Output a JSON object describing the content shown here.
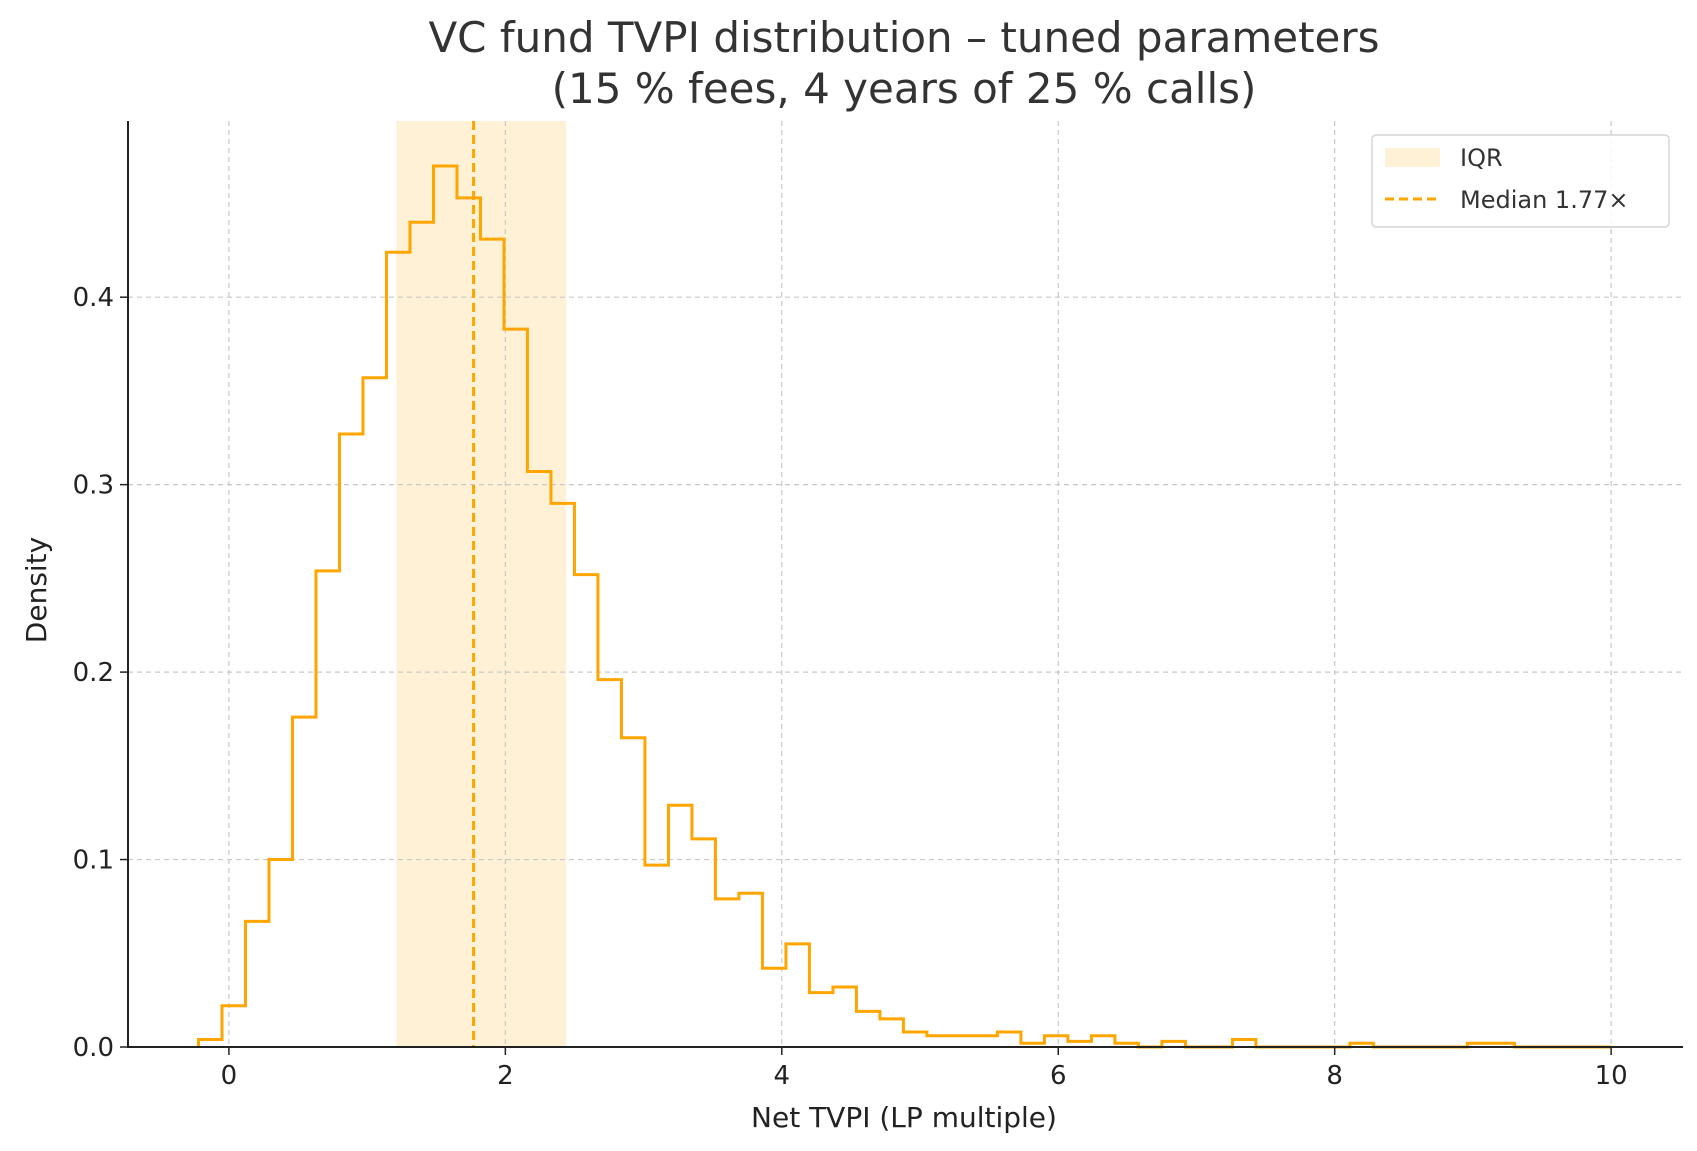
{
  "chart_data": {
    "type": "histogram",
    "title_lines": [
      "VC fund TVPI distribution – tuned parameters",
      "(15 % fees, 4 years of 25 % calls)"
    ],
    "xlabel": "Net TVPI (LP multiple)",
    "ylabel": "Density",
    "xlim": [
      -0.73,
      10.52
    ],
    "ylim": [
      0,
      0.494
    ],
    "xticks": [
      0,
      2,
      4,
      6,
      8,
      10
    ],
    "yticks": [
      0.0,
      0.1,
      0.2,
      0.3,
      0.4
    ],
    "grid": true,
    "color": "#FFA500",
    "iqr": {
      "range": [
        1.21,
        2.44
      ],
      "color": "#FFF1D6",
      "label": "IQR"
    },
    "median": {
      "value": 1.77,
      "label": "Median 1.77×"
    },
    "legend_position": "top-right",
    "bin_edges": [
      -0.22,
      -0.05,
      0.12,
      0.29,
      0.46,
      0.63,
      0.8,
      0.97,
      1.14,
      1.31,
      1.48,
      1.65,
      1.82,
      1.99,
      2.16,
      2.33,
      2.5,
      2.67,
      2.84,
      3.01,
      3.18,
      3.35,
      3.52,
      3.69,
      3.86,
      4.03,
      4.2,
      4.37,
      4.54,
      4.71,
      4.88,
      5.05,
      5.22,
      5.39,
      5.56,
      5.73,
      5.9,
      6.07,
      6.24,
      6.41,
      6.58,
      6.75,
      6.92,
      7.09,
      7.26,
      7.43,
      7.6,
      7.77,
      7.94,
      8.11,
      8.28,
      8.45,
      8.62,
      8.79,
      8.96,
      9.13,
      9.3,
      9.47,
      9.64,
      9.81,
      10.0
    ],
    "densities": [
      0.004,
      0.022,
      0.067,
      0.1,
      0.176,
      0.254,
      0.327,
      0.357,
      0.424,
      0.44,
      0.47,
      0.453,
      0.431,
      0.383,
      0.307,
      0.29,
      0.252,
      0.196,
      0.165,
      0.097,
      0.129,
      0.111,
      0.079,
      0.082,
      0.042,
      0.055,
      0.029,
      0.032,
      0.019,
      0.015,
      0.008,
      0.006,
      0.006,
      0.006,
      0.008,
      0.002,
      0.006,
      0.003,
      0.006,
      0.002,
      0.0,
      0.003,
      0.0,
      0.0,
      0.004,
      0.0,
      0.0,
      0.0,
      0.0,
      0.002,
      0.0,
      0.0,
      0.0,
      0.0,
      0.002,
      0.002,
      0.0,
      0.0,
      0.0,
      0.0
    ]
  }
}
